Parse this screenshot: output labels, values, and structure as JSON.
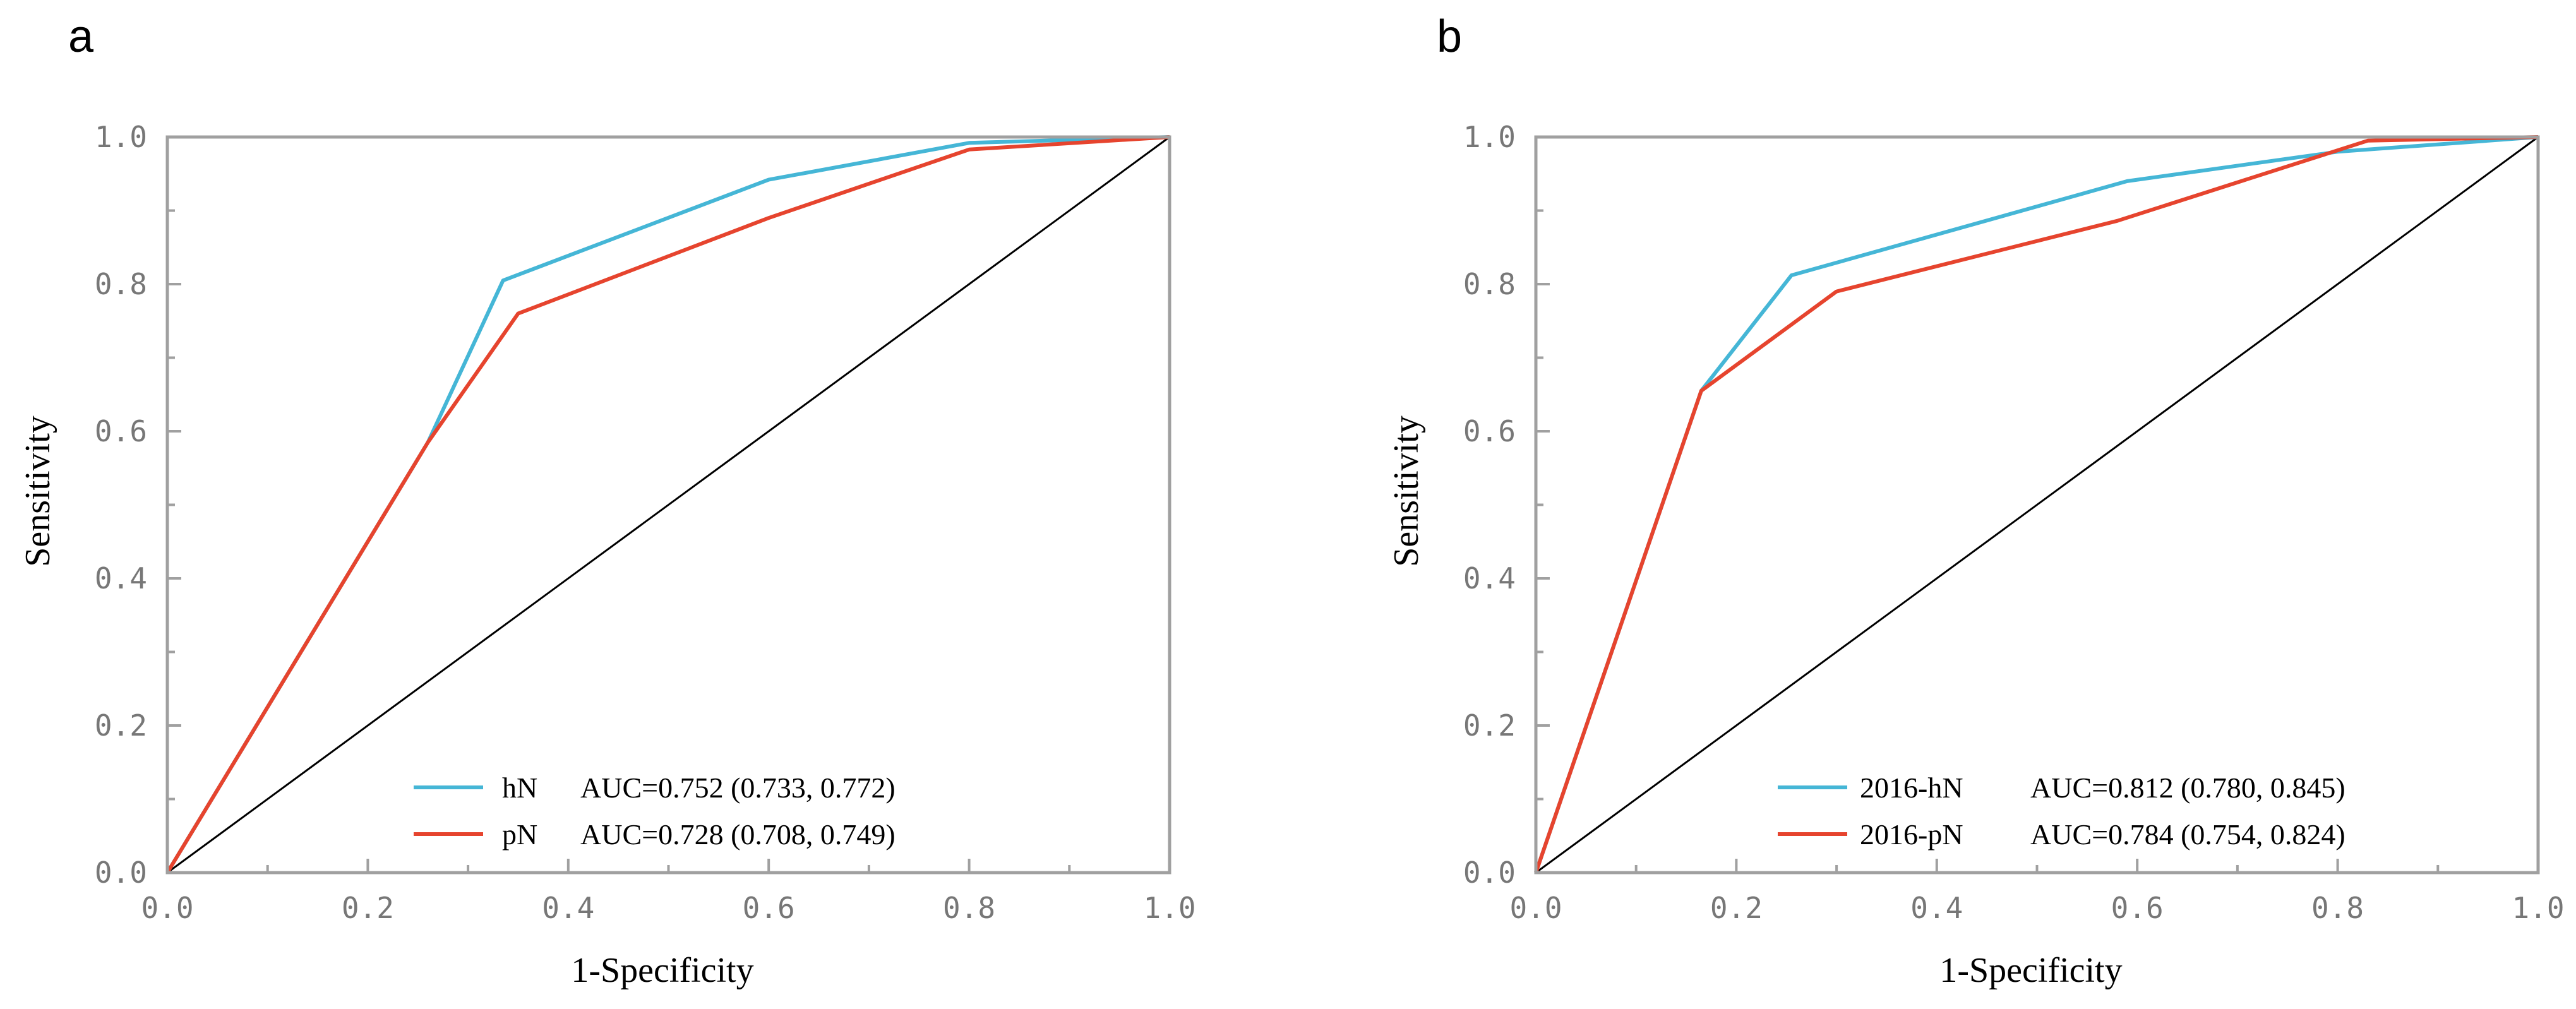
{
  "chart_data": [
    {
      "panel": "a",
      "type": "line",
      "xlabel": "1-Specificity",
      "ylabel": "Sensitivity",
      "xlim": [
        0,
        1
      ],
      "ylim": [
        0,
        1
      ],
      "xticks": [
        "0.0",
        "0.2",
        "0.4",
        "0.6",
        "0.8",
        "1.0"
      ],
      "yticks": [
        "0.0",
        "0.2",
        "0.4",
        "0.6",
        "0.8",
        "1.0"
      ],
      "reference_line": [
        [
          0,
          0
        ],
        [
          1,
          1
        ]
      ],
      "legend_position": "bottom-right",
      "series": [
        {
          "name": "hN",
          "auc_text": "AUC=0.752 (0.733, 0.772)",
          "color": "#45b6d6",
          "points": [
            [
              0,
              0
            ],
            [
              0.26,
              0.585
            ],
            [
              0.335,
              0.805
            ],
            [
              0.6,
              0.942
            ],
            [
              0.8,
              0.992
            ],
            [
              1,
              1
            ]
          ]
        },
        {
          "name": "pN",
          "auc_text": "AUC=0.728 (0.708, 0.749)",
          "color": "#e6442e",
          "points": [
            [
              0,
              0
            ],
            [
              0.26,
              0.585
            ],
            [
              0.35,
              0.76
            ],
            [
              0.6,
              0.89
            ],
            [
              0.8,
              0.983
            ],
            [
              1,
              1
            ]
          ]
        }
      ]
    },
    {
      "panel": "b",
      "type": "line",
      "xlabel": "1-Specificity",
      "ylabel": "Sensitivity",
      "xlim": [
        0,
        1
      ],
      "ylim": [
        0,
        1
      ],
      "xticks": [
        "0.0",
        "0.2",
        "0.4",
        "0.6",
        "0.8",
        "1.0"
      ],
      "yticks": [
        "0.0",
        "0.2",
        "0.4",
        "0.6",
        "0.8",
        "1.0"
      ],
      "reference_line": [
        [
          0,
          0
        ],
        [
          1,
          1
        ]
      ],
      "legend_position": "bottom-right",
      "series": [
        {
          "name": "2016-hN",
          "auc_text": "AUC=0.812 (0.780, 0.845)",
          "color": "#45b6d6",
          "points": [
            [
              0,
              0
            ],
            [
              0.165,
              0.655
            ],
            [
              0.255,
              0.812
            ],
            [
              0.59,
              0.94
            ],
            [
              0.8,
              0.98
            ],
            [
              1,
              1
            ]
          ]
        },
        {
          "name": "2016-pN",
          "auc_text": "AUC=0.784 (0.754, 0.824)",
          "color": "#e6442e",
          "points": [
            [
              0,
              0
            ],
            [
              0.165,
              0.655
            ],
            [
              0.3,
              0.79
            ],
            [
              0.58,
              0.886
            ],
            [
              0.83,
              0.995
            ],
            [
              1,
              1
            ]
          ]
        }
      ]
    }
  ]
}
